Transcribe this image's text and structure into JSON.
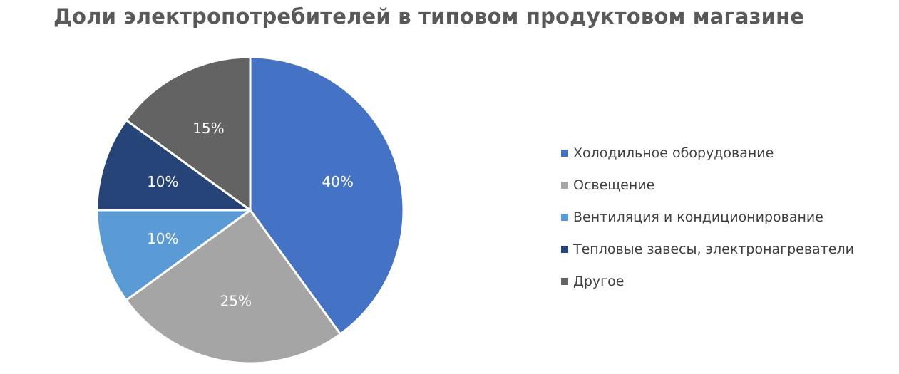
{
  "chart_data": {
    "type": "pie",
    "title": "Доли электропотребителей в типовом продуктовом магазине",
    "categories": [
      "Холодильное оборудование",
      "Освещение",
      "Вентиляция и кондиционирование",
      "Тепловые завесы, электронагреватели",
      "Другое"
    ],
    "values": [
      40,
      25,
      10,
      10,
      15
    ],
    "value_labels": [
      "40%",
      "25%",
      "10%",
      "10%",
      "15%"
    ],
    "colors": [
      "#4472C4",
      "#A5A5A5",
      "#5B9BD5",
      "#264478",
      "#636363"
    ],
    "legend_position": "right",
    "start_angle": "12 o'clock, clockwise"
  }
}
